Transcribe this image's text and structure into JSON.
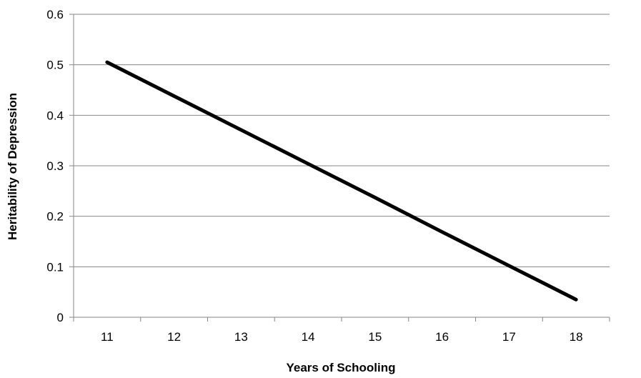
{
  "chart_data": {
    "type": "line",
    "title": "",
    "xlabel": "Years of Schooling",
    "ylabel": "Heritability of Depression",
    "x": [
      11,
      12,
      13,
      14,
      15,
      16,
      17,
      18
    ],
    "series": [
      {
        "values": [
          0.505,
          0.438,
          0.371,
          0.304,
          0.237,
          0.169,
          0.102,
          0.035
        ]
      }
    ],
    "x_categories": [
      "11",
      "12",
      "13",
      "14",
      "15",
      "16",
      "17",
      "18"
    ],
    "y_ticks": [
      "0",
      "0.1",
      "0.2",
      "0.3",
      "0.4",
      "0.5",
      "0.6"
    ],
    "ylim": [
      0,
      0.6
    ],
    "grid": "horizontal",
    "legend": "none",
    "colors": {
      "line": "#000000",
      "grid": "#868686",
      "axis": "#868686"
    }
  }
}
